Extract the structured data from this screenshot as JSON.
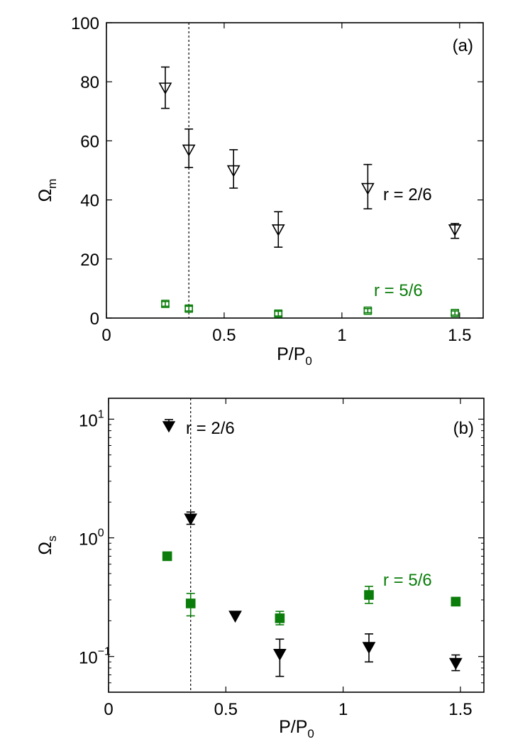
{
  "chart_data": [
    {
      "panel": "(a)",
      "type": "scatter",
      "xlabel": "P/P",
      "xlabel_sub": "0",
      "ylabel": "Ω",
      "ylabel_sub": "m",
      "xlim": [
        0,
        1.6
      ],
      "ylim": [
        0,
        100
      ],
      "yscale": "linear",
      "x_ticks": [
        0,
        0.5,
        1,
        1.5
      ],
      "x_tick_labels": [
        "0",
        "0.5",
        "1",
        "1.5"
      ],
      "y_ticks": [
        0,
        20,
        40,
        60,
        80,
        100
      ],
      "y_tick_labels": [
        "0",
        "20",
        "40",
        "60",
        "80",
        "100"
      ],
      "vline_x": 0.35,
      "series": [
        {
          "name": "r = 2/6",
          "color": "#000000",
          "marker": "triangle-down-open",
          "points": [
            {
              "x": 0.25,
              "y": 78,
              "lo": 71,
              "hi": 85
            },
            {
              "x": 0.35,
              "y": 57,
              "lo": 51,
              "hi": 64
            },
            {
              "x": 0.54,
              "y": 50,
              "lo": 44,
              "hi": 57
            },
            {
              "x": 0.73,
              "y": 30,
              "lo": 24,
              "hi": 36
            },
            {
              "x": 1.11,
              "y": 44,
              "lo": 37,
              "hi": 52
            },
            {
              "x": 1.48,
              "y": 30,
              "lo": 27,
              "hi": 32
            }
          ]
        },
        {
          "name": "r = 5/6",
          "color": "#0a7d0a",
          "marker": "square-open",
          "points": [
            {
              "x": 0.25,
              "y": 4.8,
              "lo": 4.0,
              "hi": 5.6
            },
            {
              "x": 0.35,
              "y": 3.2,
              "lo": 2.4,
              "hi": 4.0
            },
            {
              "x": 0.73,
              "y": 1.5,
              "lo": 0.7,
              "hi": 2.3
            },
            {
              "x": 1.11,
              "y": 2.5,
              "lo": 1.8,
              "hi": 3.2
            },
            {
              "x": 1.48,
              "y": 1.7,
              "lo": 1.0,
              "hi": 2.4
            }
          ]
        }
      ],
      "annotations": [
        {
          "text": "r = 2/6",
          "color": "#000000"
        },
        {
          "text": "r = 5/6",
          "color": "#0a7d0a"
        }
      ]
    },
    {
      "panel": "(b)",
      "type": "scatter",
      "xlabel": "P/P",
      "xlabel_sub": "0",
      "ylabel": "Ω",
      "ylabel_sub": "s",
      "xlim": [
        0,
        1.6
      ],
      "ylim": [
        0.05,
        15
      ],
      "yscale": "log",
      "x_ticks": [
        0,
        0.5,
        1,
        1.5
      ],
      "x_tick_labels": [
        "0",
        "0.5",
        "1",
        "1.5"
      ],
      "y_ticks": [
        0.1,
        1,
        10
      ],
      "y_tick_labels": [
        {
          "base": "10",
          "exp": "−1"
        },
        {
          "base": "10",
          "exp": "0"
        },
        {
          "base": "10",
          "exp": "1"
        }
      ],
      "vline_x": 0.35,
      "series": [
        {
          "name": "r = 2/6",
          "color": "#000000",
          "marker": "triangle-down-filled",
          "points": [
            {
              "x": 0.35,
              "y": 1.45,
              "lo": 1.3,
              "hi": 1.65
            },
            {
              "x": 0.54,
              "y": 0.22,
              "lo": 0.22,
              "hi": 0.22
            },
            {
              "x": 0.73,
              "y": 0.105,
              "lo": 0.068,
              "hi": 0.14
            },
            {
              "x": 1.11,
              "y": 0.12,
              "lo": 0.09,
              "hi": 0.155
            },
            {
              "x": 1.48,
              "y": 0.088,
              "lo": 0.076,
              "hi": 0.103
            }
          ]
        },
        {
          "name": "r = 5/6",
          "color": "#0a7d0a",
          "marker": "square-filled",
          "points": [
            {
              "x": 0.25,
              "y": 0.7,
              "lo": 0.7,
              "hi": 0.7
            },
            {
              "x": 0.35,
              "y": 0.28,
              "lo": 0.22,
              "hi": 0.34
            },
            {
              "x": 0.73,
              "y": 0.21,
              "lo": 0.185,
              "hi": 0.24
            },
            {
              "x": 1.11,
              "y": 0.33,
              "lo": 0.28,
              "hi": 0.39
            },
            {
              "x": 1.48,
              "y": 0.29,
              "lo": 0.29,
              "hi": 0.29
            }
          ]
        }
      ],
      "annotations": [
        {
          "text": "r = 2/6",
          "color": "#000000"
        },
        {
          "text": "r = 5/6",
          "color": "#0a7d0a"
        }
      ]
    }
  ]
}
